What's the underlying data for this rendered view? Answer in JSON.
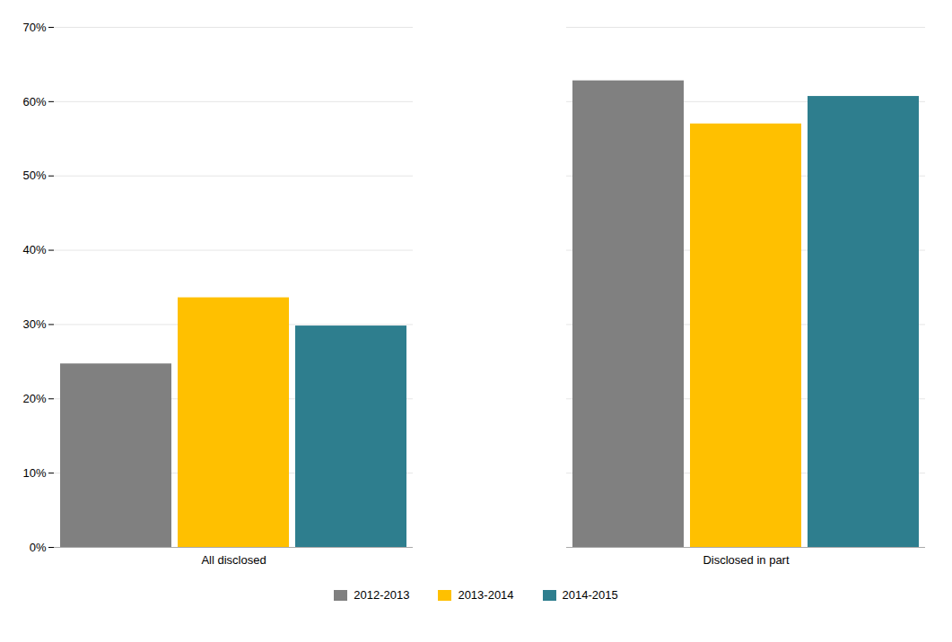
{
  "chart_data": {
    "type": "bar",
    "categories": [
      "All disclosed",
      "Disclosed in part"
    ],
    "series": [
      {
        "name": "2012-2013",
        "color": "#808080",
        "values": [
          0.247,
          0.628
        ]
      },
      {
        "name": "2013-2014",
        "color": "#FFC000",
        "values": [
          0.336,
          0.57
        ]
      },
      {
        "name": "2014-2015",
        "color": "#2E7E8E",
        "values": [
          0.298,
          0.607
        ]
      }
    ],
    "ylim": [
      0,
      0.7
    ],
    "yticks": [
      {
        "value": 0.0,
        "label": "0%"
      },
      {
        "value": 0.1,
        "label": "10%"
      },
      {
        "value": 0.2,
        "label": "20%"
      },
      {
        "value": 0.3,
        "label": "30%"
      },
      {
        "value": 0.4,
        "label": "40%"
      },
      {
        "value": 0.5,
        "label": "50%"
      },
      {
        "value": 0.6,
        "label": "60%"
      },
      {
        "value": 0.7,
        "label": "70%"
      }
    ],
    "grid": true,
    "legend": "bottom"
  }
}
